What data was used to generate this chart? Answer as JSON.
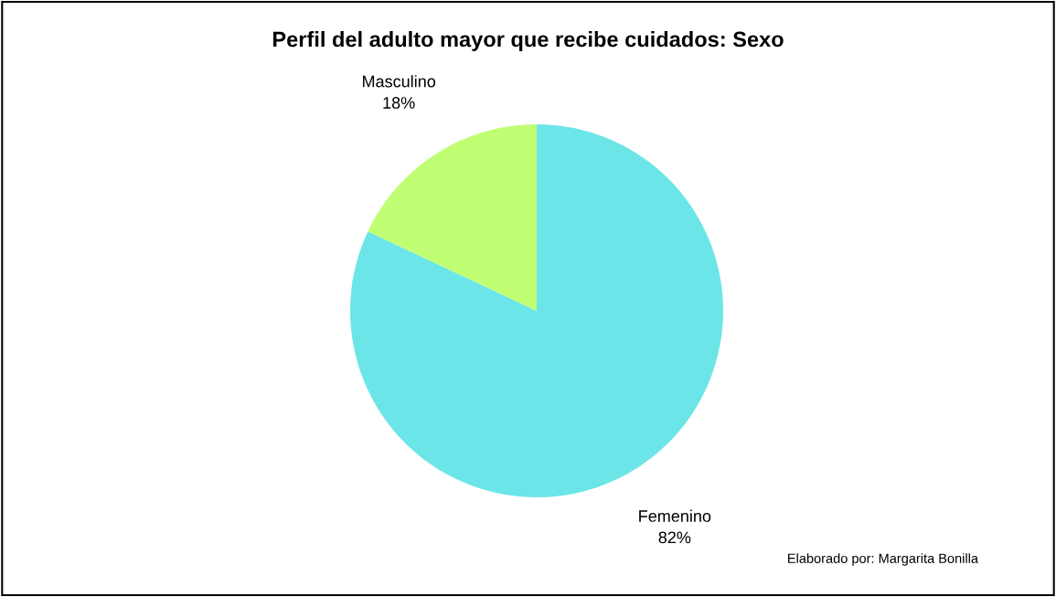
{
  "chart_data": {
    "type": "pie",
    "title": "Perfil del adulto mayor que recibe cuidados: Sexo",
    "categories": [
      "Femenino",
      "Masculino"
    ],
    "values": [
      82,
      18
    ],
    "value_labels": [
      "82%",
      "18%"
    ],
    "colors": [
      "#6ce5e8",
      "#c0fe73"
    ],
    "annotations": [
      "Elaborado por: Margarita Bonilla"
    ]
  }
}
